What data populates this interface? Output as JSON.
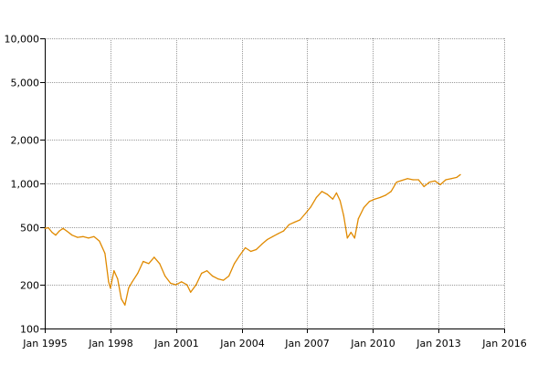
{
  "chart_data": {
    "type": "line",
    "title": "",
    "xlabel": "",
    "ylabel": "",
    "y_scale": "log",
    "ylim": [
      100,
      10000
    ],
    "xlim": [
      "1995-01",
      "2016-01"
    ],
    "grid": true,
    "colors": {
      "line": "#e08a00",
      "grid": "#9a9a9a",
      "axis": "#000000"
    },
    "x_ticks": [
      {
        "label": "Jan 1995",
        "value": "1995-01"
      },
      {
        "label": "Jan 1998",
        "value": "1998-01"
      },
      {
        "label": "Jan 2001",
        "value": "2001-01"
      },
      {
        "label": "Jan 2004",
        "value": "2004-01"
      },
      {
        "label": "Jan 2007",
        "value": "2007-01"
      },
      {
        "label": "Jan 2010",
        "value": "2010-01"
      },
      {
        "label": "Jan 2013",
        "value": "2013-01"
      },
      {
        "label": "Jan 2016",
        "value": "2016-01"
      }
    ],
    "y_ticks": [
      {
        "label": "10,000",
        "value": 10000
      },
      {
        "label": "5,000",
        "value": 5000
      },
      {
        "label": "2,000",
        "value": 2000
      },
      {
        "label": "1,000",
        "value": 1000
      },
      {
        "label": "500",
        "value": 500
      },
      {
        "label": "200",
        "value": 200
      },
      {
        "label": "100",
        "value": 100
      }
    ],
    "series": [
      {
        "points": [
          {
            "x": "1995-01",
            "y": 490
          },
          {
            "x": "1995-03",
            "y": 495
          },
          {
            "x": "1995-05",
            "y": 460
          },
          {
            "x": "1995-07",
            "y": 440
          },
          {
            "x": "1995-09",
            "y": 470
          },
          {
            "x": "1995-11",
            "y": 490
          },
          {
            "x": "1996-01",
            "y": 470
          },
          {
            "x": "1996-04",
            "y": 440
          },
          {
            "x": "1996-07",
            "y": 425
          },
          {
            "x": "1996-10",
            "y": 430
          },
          {
            "x": "1997-01",
            "y": 420
          },
          {
            "x": "1997-04",
            "y": 430
          },
          {
            "x": "1997-07",
            "y": 400
          },
          {
            "x": "1997-10",
            "y": 330
          },
          {
            "x": "1997-12",
            "y": 210
          },
          {
            "x": "1998-01",
            "y": 190
          },
          {
            "x": "1998-03",
            "y": 250
          },
          {
            "x": "1998-05",
            "y": 220
          },
          {
            "x": "1998-07",
            "y": 160
          },
          {
            "x": "1998-09",
            "y": 145
          },
          {
            "x": "1998-11",
            "y": 190
          },
          {
            "x": "1999-01",
            "y": 210
          },
          {
            "x": "1999-04",
            "y": 240
          },
          {
            "x": "1999-07",
            "y": 290
          },
          {
            "x": "1999-10",
            "y": 280
          },
          {
            "x": "2000-01",
            "y": 310
          },
          {
            "x": "2000-04",
            "y": 280
          },
          {
            "x": "2000-07",
            "y": 230
          },
          {
            "x": "2000-10",
            "y": 205
          },
          {
            "x": "2001-01",
            "y": 200
          },
          {
            "x": "2001-04",
            "y": 210
          },
          {
            "x": "2001-07",
            "y": 200
          },
          {
            "x": "2001-09",
            "y": 178
          },
          {
            "x": "2001-12",
            "y": 200
          },
          {
            "x": "2002-03",
            "y": 240
          },
          {
            "x": "2002-06",
            "y": 250
          },
          {
            "x": "2002-09",
            "y": 230
          },
          {
            "x": "2002-12",
            "y": 220
          },
          {
            "x": "2003-03",
            "y": 215
          },
          {
            "x": "2003-06",
            "y": 230
          },
          {
            "x": "2003-09",
            "y": 280
          },
          {
            "x": "2003-12",
            "y": 320
          },
          {
            "x": "2004-03",
            "y": 360
          },
          {
            "x": "2004-06",
            "y": 340
          },
          {
            "x": "2004-09",
            "y": 350
          },
          {
            "x": "2004-12",
            "y": 380
          },
          {
            "x": "2005-03",
            "y": 410
          },
          {
            "x": "2005-06",
            "y": 430
          },
          {
            "x": "2005-09",
            "y": 450
          },
          {
            "x": "2005-12",
            "y": 470
          },
          {
            "x": "2006-03",
            "y": 520
          },
          {
            "x": "2006-06",
            "y": 540
          },
          {
            "x": "2006-09",
            "y": 560
          },
          {
            "x": "2006-12",
            "y": 620
          },
          {
            "x": "2007-03",
            "y": 690
          },
          {
            "x": "2007-06",
            "y": 800
          },
          {
            "x": "2007-09",
            "y": 880
          },
          {
            "x": "2007-12",
            "y": 840
          },
          {
            "x": "2008-03",
            "y": 780
          },
          {
            "x": "2008-05",
            "y": 860
          },
          {
            "x": "2008-07",
            "y": 760
          },
          {
            "x": "2008-09",
            "y": 600
          },
          {
            "x": "2008-11",
            "y": 420
          },
          {
            "x": "2009-01",
            "y": 460
          },
          {
            "x": "2009-03",
            "y": 420
          },
          {
            "x": "2009-05",
            "y": 570
          },
          {
            "x": "2009-08",
            "y": 680
          },
          {
            "x": "2009-11",
            "y": 750
          },
          {
            "x": "2010-02",
            "y": 780
          },
          {
            "x": "2010-05",
            "y": 800
          },
          {
            "x": "2010-08",
            "y": 830
          },
          {
            "x": "2010-11",
            "y": 880
          },
          {
            "x": "2011-02",
            "y": 1020
          },
          {
            "x": "2011-05",
            "y": 1050
          },
          {
            "x": "2011-08",
            "y": 1080
          },
          {
            "x": "2011-11",
            "y": 1060
          },
          {
            "x": "2012-02",
            "y": 1060
          },
          {
            "x": "2012-05",
            "y": 950
          },
          {
            "x": "2012-08",
            "y": 1020
          },
          {
            "x": "2012-11",
            "y": 1040
          },
          {
            "x": "2013-02",
            "y": 980
          },
          {
            "x": "2013-05",
            "y": 1060
          },
          {
            "x": "2013-08",
            "y": 1080
          },
          {
            "x": "2013-11",
            "y": 1100
          },
          {
            "x": "2014-01",
            "y": 1150
          }
        ]
      }
    ]
  }
}
